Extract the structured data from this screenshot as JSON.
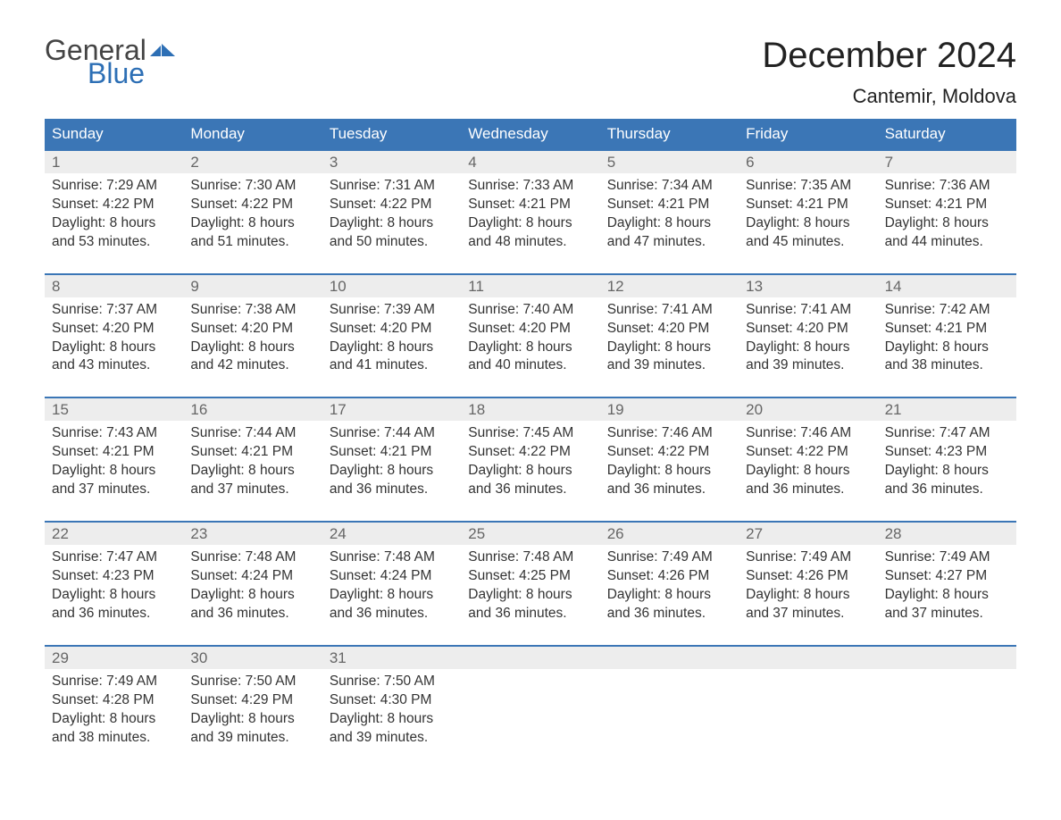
{
  "logo": {
    "general": "General",
    "blue": "Blue"
  },
  "title": "December 2024",
  "location": "Cantemir, Moldova",
  "colors": {
    "header_bg": "#3b76b6",
    "header_text": "#ffffff",
    "day_header_bg": "#ededed",
    "day_header_text": "#666666",
    "body_text": "#333333",
    "row_border": "#3b76b6",
    "logo_blue": "#2d6fb5",
    "logo_general": "#444444",
    "page_bg": "#ffffff"
  },
  "weekdays": [
    "Sunday",
    "Monday",
    "Tuesday",
    "Wednesday",
    "Thursday",
    "Friday",
    "Saturday"
  ],
  "weeks": [
    [
      {
        "day": "1",
        "sunrise": "Sunrise: 7:29 AM",
        "sunset": "Sunset: 4:22 PM",
        "daylight1": "Daylight: 8 hours",
        "daylight2": "and 53 minutes."
      },
      {
        "day": "2",
        "sunrise": "Sunrise: 7:30 AM",
        "sunset": "Sunset: 4:22 PM",
        "daylight1": "Daylight: 8 hours",
        "daylight2": "and 51 minutes."
      },
      {
        "day": "3",
        "sunrise": "Sunrise: 7:31 AM",
        "sunset": "Sunset: 4:22 PM",
        "daylight1": "Daylight: 8 hours",
        "daylight2": "and 50 minutes."
      },
      {
        "day": "4",
        "sunrise": "Sunrise: 7:33 AM",
        "sunset": "Sunset: 4:21 PM",
        "daylight1": "Daylight: 8 hours",
        "daylight2": "and 48 minutes."
      },
      {
        "day": "5",
        "sunrise": "Sunrise: 7:34 AM",
        "sunset": "Sunset: 4:21 PM",
        "daylight1": "Daylight: 8 hours",
        "daylight2": "and 47 minutes."
      },
      {
        "day": "6",
        "sunrise": "Sunrise: 7:35 AM",
        "sunset": "Sunset: 4:21 PM",
        "daylight1": "Daylight: 8 hours",
        "daylight2": "and 45 minutes."
      },
      {
        "day": "7",
        "sunrise": "Sunrise: 7:36 AM",
        "sunset": "Sunset: 4:21 PM",
        "daylight1": "Daylight: 8 hours",
        "daylight2": "and 44 minutes."
      }
    ],
    [
      {
        "day": "8",
        "sunrise": "Sunrise: 7:37 AM",
        "sunset": "Sunset: 4:20 PM",
        "daylight1": "Daylight: 8 hours",
        "daylight2": "and 43 minutes."
      },
      {
        "day": "9",
        "sunrise": "Sunrise: 7:38 AM",
        "sunset": "Sunset: 4:20 PM",
        "daylight1": "Daylight: 8 hours",
        "daylight2": "and 42 minutes."
      },
      {
        "day": "10",
        "sunrise": "Sunrise: 7:39 AM",
        "sunset": "Sunset: 4:20 PM",
        "daylight1": "Daylight: 8 hours",
        "daylight2": "and 41 minutes."
      },
      {
        "day": "11",
        "sunrise": "Sunrise: 7:40 AM",
        "sunset": "Sunset: 4:20 PM",
        "daylight1": "Daylight: 8 hours",
        "daylight2": "and 40 minutes."
      },
      {
        "day": "12",
        "sunrise": "Sunrise: 7:41 AM",
        "sunset": "Sunset: 4:20 PM",
        "daylight1": "Daylight: 8 hours",
        "daylight2": "and 39 minutes."
      },
      {
        "day": "13",
        "sunrise": "Sunrise: 7:41 AM",
        "sunset": "Sunset: 4:20 PM",
        "daylight1": "Daylight: 8 hours",
        "daylight2": "and 39 minutes."
      },
      {
        "day": "14",
        "sunrise": "Sunrise: 7:42 AM",
        "sunset": "Sunset: 4:21 PM",
        "daylight1": "Daylight: 8 hours",
        "daylight2": "and 38 minutes."
      }
    ],
    [
      {
        "day": "15",
        "sunrise": "Sunrise: 7:43 AM",
        "sunset": "Sunset: 4:21 PM",
        "daylight1": "Daylight: 8 hours",
        "daylight2": "and 37 minutes."
      },
      {
        "day": "16",
        "sunrise": "Sunrise: 7:44 AM",
        "sunset": "Sunset: 4:21 PM",
        "daylight1": "Daylight: 8 hours",
        "daylight2": "and 37 minutes."
      },
      {
        "day": "17",
        "sunrise": "Sunrise: 7:44 AM",
        "sunset": "Sunset: 4:21 PM",
        "daylight1": "Daylight: 8 hours",
        "daylight2": "and 36 minutes."
      },
      {
        "day": "18",
        "sunrise": "Sunrise: 7:45 AM",
        "sunset": "Sunset: 4:22 PM",
        "daylight1": "Daylight: 8 hours",
        "daylight2": "and 36 minutes."
      },
      {
        "day": "19",
        "sunrise": "Sunrise: 7:46 AM",
        "sunset": "Sunset: 4:22 PM",
        "daylight1": "Daylight: 8 hours",
        "daylight2": "and 36 minutes."
      },
      {
        "day": "20",
        "sunrise": "Sunrise: 7:46 AM",
        "sunset": "Sunset: 4:22 PM",
        "daylight1": "Daylight: 8 hours",
        "daylight2": "and 36 minutes."
      },
      {
        "day": "21",
        "sunrise": "Sunrise: 7:47 AM",
        "sunset": "Sunset: 4:23 PM",
        "daylight1": "Daylight: 8 hours",
        "daylight2": "and 36 minutes."
      }
    ],
    [
      {
        "day": "22",
        "sunrise": "Sunrise: 7:47 AM",
        "sunset": "Sunset: 4:23 PM",
        "daylight1": "Daylight: 8 hours",
        "daylight2": "and 36 minutes."
      },
      {
        "day": "23",
        "sunrise": "Sunrise: 7:48 AM",
        "sunset": "Sunset: 4:24 PM",
        "daylight1": "Daylight: 8 hours",
        "daylight2": "and 36 minutes."
      },
      {
        "day": "24",
        "sunrise": "Sunrise: 7:48 AM",
        "sunset": "Sunset: 4:24 PM",
        "daylight1": "Daylight: 8 hours",
        "daylight2": "and 36 minutes."
      },
      {
        "day": "25",
        "sunrise": "Sunrise: 7:48 AM",
        "sunset": "Sunset: 4:25 PM",
        "daylight1": "Daylight: 8 hours",
        "daylight2": "and 36 minutes."
      },
      {
        "day": "26",
        "sunrise": "Sunrise: 7:49 AM",
        "sunset": "Sunset: 4:26 PM",
        "daylight1": "Daylight: 8 hours",
        "daylight2": "and 36 minutes."
      },
      {
        "day": "27",
        "sunrise": "Sunrise: 7:49 AM",
        "sunset": "Sunset: 4:26 PM",
        "daylight1": "Daylight: 8 hours",
        "daylight2": "and 37 minutes."
      },
      {
        "day": "28",
        "sunrise": "Sunrise: 7:49 AM",
        "sunset": "Sunset: 4:27 PM",
        "daylight1": "Daylight: 8 hours",
        "daylight2": "and 37 minutes."
      }
    ],
    [
      {
        "day": "29",
        "sunrise": "Sunrise: 7:49 AM",
        "sunset": "Sunset: 4:28 PM",
        "daylight1": "Daylight: 8 hours",
        "daylight2": "and 38 minutes."
      },
      {
        "day": "30",
        "sunrise": "Sunrise: 7:50 AM",
        "sunset": "Sunset: 4:29 PM",
        "daylight1": "Daylight: 8 hours",
        "daylight2": "and 39 minutes."
      },
      {
        "day": "31",
        "sunrise": "Sunrise: 7:50 AM",
        "sunset": "Sunset: 4:30 PM",
        "daylight1": "Daylight: 8 hours",
        "daylight2": "and 39 minutes."
      },
      null,
      null,
      null,
      null
    ]
  ]
}
